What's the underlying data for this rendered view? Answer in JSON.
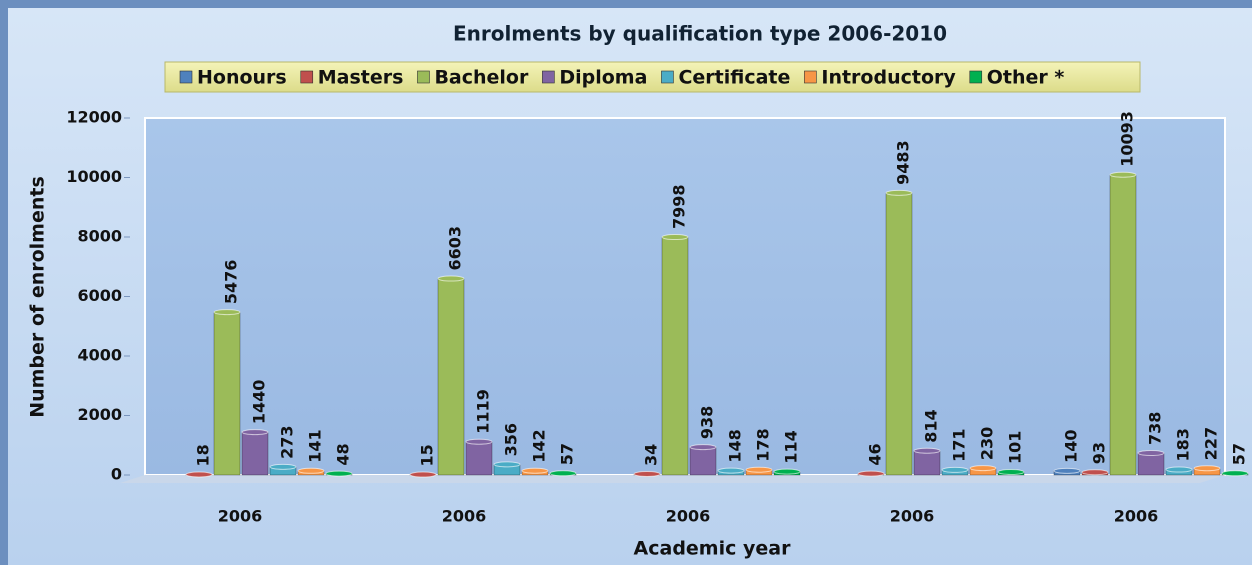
{
  "chart_data": {
    "type": "bar",
    "title": "Enrolments by qualification type 2006-2010",
    "x_label": "Academic year",
    "y_label": "Number of enrolments",
    "categories": [
      "2006",
      "2006",
      "2006",
      "2006",
      "2006"
    ],
    "series": [
      {
        "name": "Honours",
        "color": "#4f81bd",
        "values": [
          null,
          null,
          null,
          null,
          140
        ]
      },
      {
        "name": "Masters",
        "color": "#c0504d",
        "values": [
          18,
          15,
          34,
          46,
          93
        ]
      },
      {
        "name": "Bachelor",
        "color": "#9bbb59",
        "values": [
          5476,
          6603,
          7998,
          9483,
          10093
        ]
      },
      {
        "name": "Diploma",
        "color": "#8064a2",
        "values": [
          1440,
          1119,
          938,
          814,
          738
        ]
      },
      {
        "name": "Certificate",
        "color": "#4bacc6",
        "values": [
          273,
          356,
          148,
          171,
          183
        ]
      },
      {
        "name": "Introductory",
        "color": "#f79646",
        "values": [
          141,
          142,
          178,
          230,
          227
        ]
      },
      {
        "name": "Other *",
        "color": "#00b050",
        "values": [
          48,
          57,
          114,
          101,
          57
        ]
      }
    ],
    "ylim": [
      0,
      12000
    ],
    "yticks": [
      0,
      2000,
      4000,
      6000,
      8000,
      10000,
      12000
    ],
    "legend": "top",
    "grid": false
  }
}
